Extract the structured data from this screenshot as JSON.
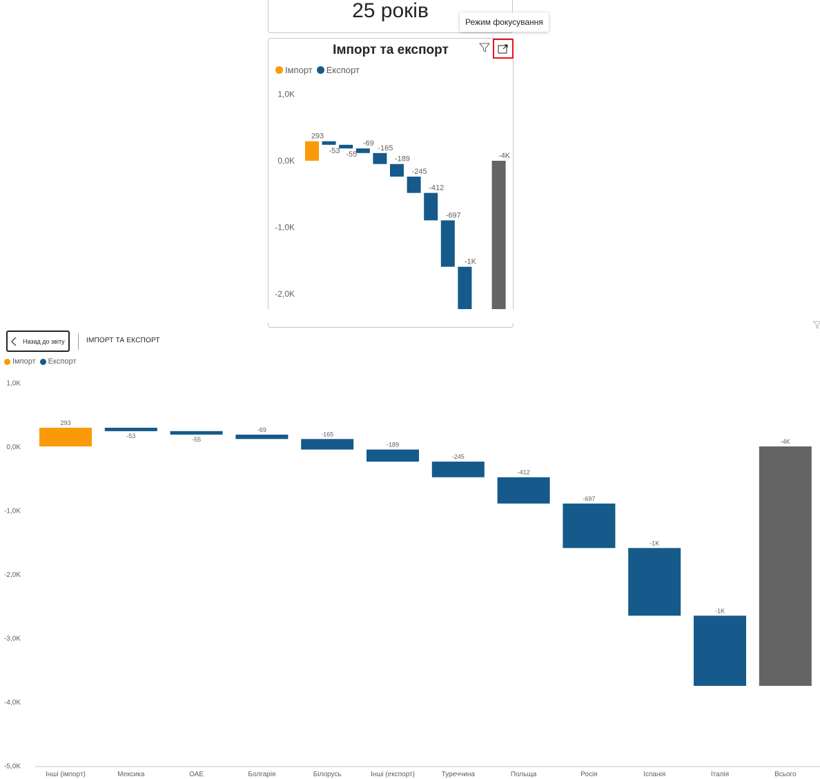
{
  "colors": {
    "import": "#FA9A0A",
    "export": "#155A8A",
    "total": "#646464",
    "axis_text": "#605e5c",
    "focus_border": "#E81123"
  },
  "kpi_card": {
    "value": "25 років"
  },
  "visual": {
    "title": "Імпорт та експорт",
    "tooltip": "Режим фокусування",
    "filter_icon": "filter-icon",
    "focus_icon": "focus-mode-icon"
  },
  "legend": {
    "items": [
      {
        "label": "Імпорт"
      },
      {
        "label": "Експорт"
      }
    ]
  },
  "focus_mode": {
    "back_label": "Назад до звіту",
    "title": "ІМПОРТ ТА ЕКСПОРТ"
  },
  "chart_data": {
    "type": "waterfall",
    "y_ticks": [
      "1,0K",
      "0,0K",
      "-1,0K",
      "-2,0K",
      "-3,0K",
      "-4,0K",
      "-5,0K"
    ],
    "mini_y_ticks": [
      "1,0K",
      "0,0K",
      "-1,0K",
      "-2,0K"
    ],
    "ylim": [
      -5000,
      1000
    ],
    "categories": [
      "Інші (імпорт)",
      "Мексика",
      "ОАЕ",
      "Болгарія",
      "Білорусь",
      "Інші (експорт)",
      "Туреччина",
      "Польща",
      "Росія",
      "Іспанія",
      "Італія",
      "Всього"
    ],
    "values": [
      293,
      -53,
      -55,
      -69,
      -165,
      -189,
      -245,
      -412,
      -697,
      -1060,
      -1100,
      -3752
    ],
    "labels": [
      "293",
      "-53",
      "-55",
      "-69",
      "-165",
      "-189",
      "-245",
      "-412",
      "-697",
      "-1K",
      "-1K",
      "-4K"
    ],
    "kinds": [
      "import",
      "export",
      "export",
      "export",
      "export",
      "export",
      "export",
      "export",
      "export",
      "export",
      "export",
      "total"
    ]
  }
}
